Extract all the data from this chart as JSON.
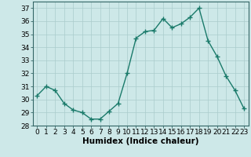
{
  "x": [
    0,
    1,
    2,
    3,
    4,
    5,
    6,
    7,
    8,
    9,
    10,
    11,
    12,
    13,
    14,
    15,
    16,
    17,
    18,
    19,
    20,
    21,
    22,
    23
  ],
  "y": [
    30.3,
    31.0,
    30.7,
    29.7,
    29.2,
    29.0,
    28.5,
    28.5,
    29.1,
    29.7,
    32.0,
    34.7,
    35.2,
    35.3,
    36.2,
    35.5,
    35.8,
    36.3,
    37.0,
    34.5,
    33.3,
    31.8,
    30.7,
    29.3
  ],
  "line_color": "#1a7a6a",
  "marker": "+",
  "marker_size": 4,
  "linewidth": 1.0,
  "bg_color": "#cde8e8",
  "grid_color": "#aacccc",
  "xlabel": "Humidex (Indice chaleur)",
  "xlim": [
    -0.5,
    23.5
  ],
  "ylim": [
    28,
    37.5
  ],
  "yticks": [
    28,
    29,
    30,
    31,
    32,
    33,
    34,
    35,
    36,
    37
  ],
  "xticks": [
    0,
    1,
    2,
    3,
    4,
    5,
    6,
    7,
    8,
    9,
    10,
    11,
    12,
    13,
    14,
    15,
    16,
    17,
    18,
    19,
    20,
    21,
    22,
    23
  ],
  "xlabel_fontsize": 7.5,
  "tick_fontsize": 6.5
}
